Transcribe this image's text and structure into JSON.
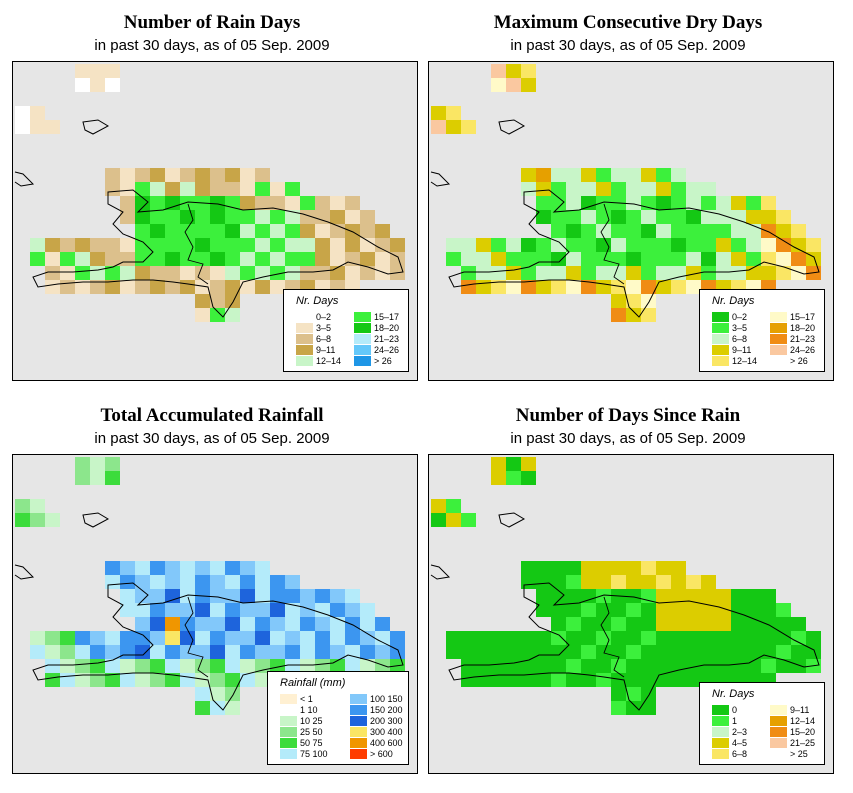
{
  "panels": [
    {
      "title": "Number of Rain Days",
      "subtitle": "in past 30 days, as of  05 Sep. 2009",
      "legend_title": "Nr. Days",
      "legend": [
        {
          "label": "0–2",
          "color": "#ffffff"
        },
        {
          "label": "3–5",
          "color": "#f5e3c4"
        },
        {
          "label": "6–8",
          "color": "#dcc08c"
        },
        {
          "label": "9–11",
          "color": "#c8a548"
        },
        {
          "label": "12–14",
          "color": "#c8f5c8"
        },
        {
          "label": "15–17",
          "color": "#3cf03c"
        },
        {
          "label": "18–20",
          "color": "#14c814"
        },
        {
          "label": "21–23",
          "color": "#b4ebfa"
        },
        {
          "label": "24–26",
          "color": "#64c8fa"
        },
        {
          "label": "> 26",
          "color": "#1e96e6"
        }
      ]
    },
    {
      "title": "Maximum Consecutive Dry Days",
      "subtitle": "in past 30 days, as of  05 Sep. 2009",
      "legend_title": "Nr. Days",
      "legend": [
        {
          "label": "0–2",
          "color": "#14c814"
        },
        {
          "label": "3–5",
          "color": "#3cf03c"
        },
        {
          "label": "6–8",
          "color": "#c8f5c8"
        },
        {
          "label": "9–11",
          "color": "#dccd00"
        },
        {
          "label": "12–14",
          "color": "#fae664"
        },
        {
          "label": "15–17",
          "color": "#fffac8"
        },
        {
          "label": "18–20",
          "color": "#e6a000"
        },
        {
          "label": "21–23",
          "color": "#f08c14"
        },
        {
          "label": "24–26",
          "color": "#fac8a0"
        },
        {
          "label": "> 26",
          "color": "#ffffff"
        }
      ]
    },
    {
      "title": "Total Accumulated Rainfall",
      "subtitle": "in past 30 days, as of  05 Sep. 2009",
      "legend_title": "Rainfall (mm)",
      "legend": [
        {
          "label": "< 1",
          "color": "#fff0d2"
        },
        {
          "label": "1  10",
          "color": "#ffffff"
        },
        {
          "label": "10  25",
          "color": "#c8f5c8"
        },
        {
          "label": "25  50",
          "color": "#8ce68c"
        },
        {
          "label": "50  75",
          "color": "#3cdc3c"
        },
        {
          "label": "75  100",
          "color": "#b4ebfa"
        },
        {
          "label": "100  150",
          "color": "#82c8fa"
        },
        {
          "label": "150  200",
          "color": "#3c96f0"
        },
        {
          "label": "200  300",
          "color": "#1e64dc"
        },
        {
          "label": "300  400",
          "color": "#fae664"
        },
        {
          "label": "400  600",
          "color": "#f09600"
        },
        {
          "label": "> 600",
          "color": "#ff3c00"
        }
      ]
    },
    {
      "title": "Number of Days Since Rain",
      "subtitle": "in past 30 days, as of  05 Sep. 2009",
      "legend_title": "Nr. Days",
      "legend": [
        {
          "label": "0",
          "color": "#14c814"
        },
        {
          "label": "1",
          "color": "#3cf03c"
        },
        {
          "label": "2–3",
          "color": "#c8f5c8"
        },
        {
          "label": "4–5",
          "color": "#dccd00"
        },
        {
          "label": "6–8",
          "color": "#fae664"
        },
        {
          "label": "9–11",
          "color": "#fffac8"
        },
        {
          "label": "12–14",
          "color": "#e6a000"
        },
        {
          "label": "15–20",
          "color": "#f08c14"
        },
        {
          "label": "21–25",
          "color": "#fac8a0"
        },
        {
          "label": "> 25",
          "color": "#ffffff"
        }
      ]
    }
  ]
}
